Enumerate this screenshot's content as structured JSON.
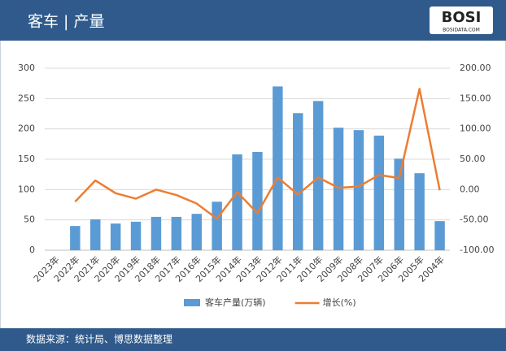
{
  "chart_data": {
    "type": "combo",
    "title": "客车 | 产量",
    "logo": "BOSI",
    "logo_sub": "BOSIDATA.COM",
    "source": "数据来源：统计局、博思数据整理",
    "categories": [
      "2023年",
      "2022年",
      "2021年",
      "2020年",
      "2019年",
      "2018年",
      "2017年",
      "2016年",
      "2015年",
      "2014年",
      "2013年",
      "2012年",
      "2011年",
      "2010年",
      "2009年",
      "2008年",
      "2007年",
      "2006年",
      "2005年",
      "2004年"
    ],
    "series": [
      {
        "name": "客车产量(万辆)",
        "type": "bar",
        "color": "#5b9bd5",
        "values": [
          null,
          40,
          51,
          44,
          47,
          55,
          55,
          60,
          80,
          158,
          162,
          270,
          226,
          246,
          202,
          198,
          189,
          151,
          127,
          48
        ]
      },
      {
        "name": "增长(%)",
        "type": "line",
        "axis": "y2",
        "color": "#ed7d31",
        "values": [
          null,
          -20,
          15,
          -6,
          -15,
          0,
          -9,
          -23,
          -48,
          -4,
          -39,
          20,
          -8,
          20,
          3,
          5,
          24,
          19,
          166,
          -1
        ]
      }
    ],
    "ylim": [
      0,
      300
    ],
    "yticks": [
      0,
      50,
      100,
      150,
      200,
      250,
      300
    ],
    "y2lim": [
      -100,
      200
    ],
    "y2ticks": [
      {
        "value": -100,
        "label": "-100.00"
      },
      {
        "value": -50,
        "label": "-50.00"
      },
      {
        "value": 0,
        "label": "0.00"
      },
      {
        "value": 50,
        "label": "50.00"
      },
      {
        "value": 100,
        "label": "100.00"
      },
      {
        "value": 150,
        "label": "150.00"
      },
      {
        "value": 200,
        "label": "200.00"
      }
    ],
    "grid": true
  }
}
